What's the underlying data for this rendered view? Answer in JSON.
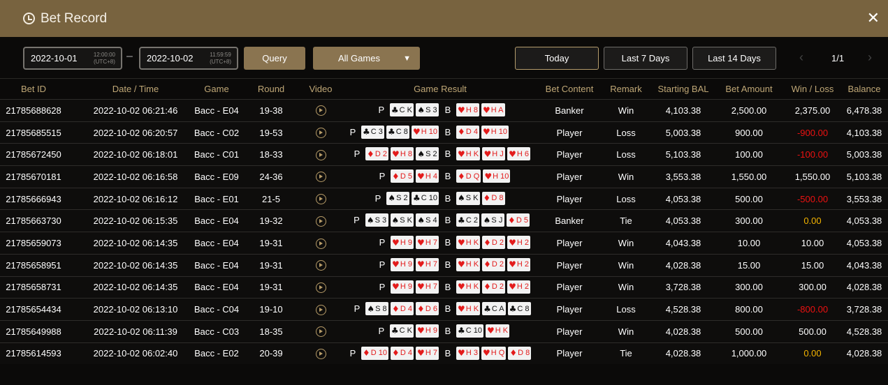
{
  "header": {
    "title": "Bet Record",
    "icon": "clock-icon",
    "close": "✕"
  },
  "filters": {
    "start_date": "2022-10-01",
    "start_time": "12:00:00",
    "start_tz": "(UTC+8)",
    "end_date": "2022-10-02",
    "end_time": "11:59:59",
    "end_tz": "(UTC+8)",
    "dash": "–",
    "query": "Query",
    "game_select": "All Games",
    "today": "Today",
    "last7": "Last 7 Days",
    "last14": "Last 14 Days",
    "page": "1/1"
  },
  "colors": {
    "header": "#78633f",
    "accent": "#8a7450",
    "loss": "#e11111",
    "tie": "#f4b400"
  },
  "columns": [
    "Bet ID",
    "Date / Time",
    "Game",
    "Round",
    "Video",
    "Game Result",
    "Bet Content",
    "Remark",
    "Starting BAL",
    "Bet Amount",
    "Win / Loss",
    "Balance"
  ],
  "rows": [
    {
      "id": "21785688628",
      "dt": "2022-10-02 06:21:46",
      "game": "Bacc - E04",
      "round": "19-38",
      "p": [
        "C K",
        "S 3"
      ],
      "b": [
        "H 8",
        "H A"
      ],
      "content": "Banker",
      "remark": "Win",
      "start": "4,103.38",
      "amount": "2,500.00",
      "wl": "2,375.00",
      "bal": "6,478.38"
    },
    {
      "id": "21785685515",
      "dt": "2022-10-02 06:20:57",
      "game": "Bacc - C02",
      "round": "19-53",
      "p": [
        "C 3",
        "C 8",
        "H 10"
      ],
      "b": [
        "D 4",
        "H 10"
      ],
      "content": "Player",
      "remark": "Loss",
      "start": "5,003.38",
      "amount": "900.00",
      "wl": "-900.00",
      "bal": "4,103.38"
    },
    {
      "id": "21785672450",
      "dt": "2022-10-02 06:18:01",
      "game": "Bacc - C01",
      "round": "18-33",
      "p": [
        "D 2",
        "H 8",
        "S 2"
      ],
      "b": [
        "H K",
        "H J",
        "H 6"
      ],
      "content": "Player",
      "remark": "Loss",
      "start": "5,103.38",
      "amount": "100.00",
      "wl": "-100.00",
      "bal": "5,003.38"
    },
    {
      "id": "21785670181",
      "dt": "2022-10-02 06:16:58",
      "game": "Bacc - E09",
      "round": "24-36",
      "p": [
        "D 5",
        "H 4"
      ],
      "b": [
        "D Q",
        "H 10"
      ],
      "content": "Player",
      "remark": "Win",
      "start": "3,553.38",
      "amount": "1,550.00",
      "wl": "1,550.00",
      "bal": "5,103.38"
    },
    {
      "id": "21785666943",
      "dt": "2022-10-02 06:16:12",
      "game": "Bacc - E01",
      "round": "21-5",
      "p": [
        "S 2",
        "C 10"
      ],
      "b": [
        "S K",
        "D 8"
      ],
      "content": "Player",
      "remark": "Loss",
      "start": "4,053.38",
      "amount": "500.00",
      "wl": "-500.00",
      "bal": "3,553.38"
    },
    {
      "id": "21785663730",
      "dt": "2022-10-02 06:15:35",
      "game": "Bacc - E04",
      "round": "19-32",
      "p": [
        "S 3",
        "S K",
        "S 4"
      ],
      "b": [
        "C 2",
        "S J",
        "D 5"
      ],
      "content": "Banker",
      "remark": "Tie",
      "start": "4,053.38",
      "amount": "300.00",
      "wl": "0.00",
      "bal": "4,053.38"
    },
    {
      "id": "21785659073",
      "dt": "2022-10-02 06:14:35",
      "game": "Bacc - E04",
      "round": "19-31",
      "p": [
        "H 9",
        "H 7"
      ],
      "b": [
        "H K",
        "D 2",
        "H 2"
      ],
      "content": "Player",
      "remark": "Win",
      "start": "4,043.38",
      "amount": "10.00",
      "wl": "10.00",
      "bal": "4,053.38"
    },
    {
      "id": "21785658951",
      "dt": "2022-10-02 06:14:35",
      "game": "Bacc - E04",
      "round": "19-31",
      "p": [
        "H 9",
        "H 7"
      ],
      "b": [
        "H K",
        "D 2",
        "H 2"
      ],
      "content": "Player",
      "remark": "Win",
      "start": "4,028.38",
      "amount": "15.00",
      "wl": "15.00",
      "bal": "4,043.38"
    },
    {
      "id": "21785658731",
      "dt": "2022-10-02 06:14:35",
      "game": "Bacc - E04",
      "round": "19-31",
      "p": [
        "H 9",
        "H 7"
      ],
      "b": [
        "H K",
        "D 2",
        "H 2"
      ],
      "content": "Player",
      "remark": "Win",
      "start": "3,728.38",
      "amount": "300.00",
      "wl": "300.00",
      "bal": "4,028.38"
    },
    {
      "id": "21785654434",
      "dt": "2022-10-02 06:13:10",
      "game": "Bacc - C04",
      "round": "19-10",
      "p": [
        "S 8",
        "D 4",
        "D 6"
      ],
      "b": [
        "H K",
        "C A",
        "C 8"
      ],
      "content": "Player",
      "remark": "Loss",
      "start": "4,528.38",
      "amount": "800.00",
      "wl": "-800.00",
      "bal": "3,728.38"
    },
    {
      "id": "21785649988",
      "dt": "2022-10-02 06:11:39",
      "game": "Bacc - C03",
      "round": "18-35",
      "p": [
        "C K",
        "H 9"
      ],
      "b": [
        "C 10",
        "H K"
      ],
      "content": "Player",
      "remark": "Win",
      "start": "4,028.38",
      "amount": "500.00",
      "wl": "500.00",
      "bal": "4,528.38"
    },
    {
      "id": "21785614593",
      "dt": "2022-10-02 06:02:40",
      "game": "Bacc - E02",
      "round": "20-39",
      "p": [
        "D 10",
        "D 4",
        "H 7"
      ],
      "b": [
        "H 3",
        "H Q",
        "D 8"
      ],
      "content": "Player",
      "remark": "Tie",
      "start": "4,028.38",
      "amount": "1,000.00",
      "wl": "0.00",
      "bal": "4,028.38"
    }
  ],
  "labels": {
    "player": "P",
    "banker": "B"
  }
}
